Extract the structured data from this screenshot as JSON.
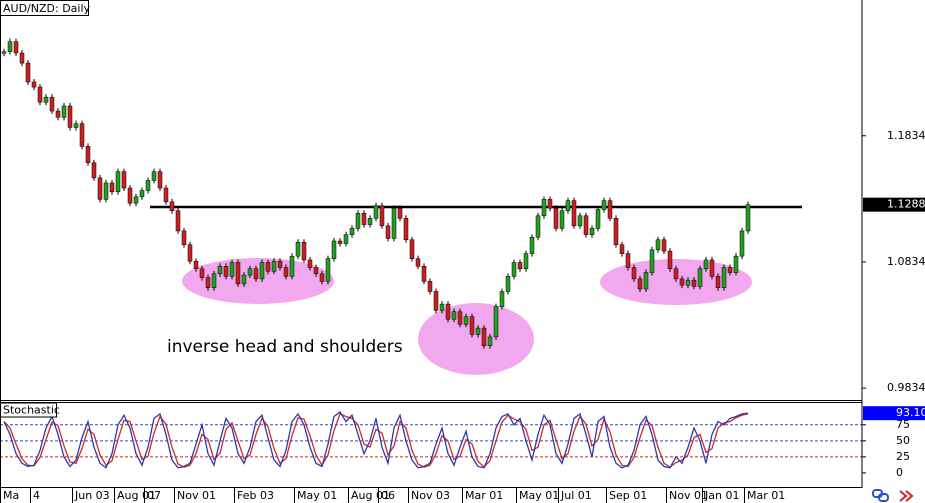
{
  "chart_data": [
    {
      "type": "candlestick",
      "title": "AUD/NZD: Daily",
      "annotation": "inverse head and shoulders",
      "up_color": "#22a022",
      "down_color": "#cc2020",
      "neckline": 1.127,
      "ylim": [
        0.974,
        1.291
      ],
      "yticks": [
        1.1834,
        1.0834,
        0.9834
      ],
      "categories": [
        "Ma",
        null,
        null,
        null,
        null,
        "4",
        null,
        null,
        null,
        null,
        null,
        null,
        "Jun 03",
        null,
        null,
        null,
        null,
        null,
        null,
        "Aug 01",
        null,
        null,
        null,
        null,
        "07",
        null,
        null,
        null,
        null,
        "Nov 01",
        null,
        null,
        null,
        null,
        null,
        null,
        null,
        null,
        null,
        "Feb 03",
        null,
        null,
        null,
        null,
        null,
        null,
        null,
        null,
        null,
        "May 01",
        null,
        null,
        null,
        null,
        null,
        null,
        null,
        null,
        "Aug 01",
        null,
        null,
        null,
        null,
        "06",
        null,
        null,
        null,
        null,
        "Nov 03",
        null,
        null,
        null,
        null,
        null,
        null,
        null,
        null,
        "Mar 01",
        null,
        null,
        null,
        null,
        null,
        null,
        null,
        null,
        "May 01",
        null,
        null,
        null,
        null,
        null,
        null,
        "Jul 01",
        null,
        null,
        null,
        null,
        null,
        null,
        null,
        "Sep 01",
        null,
        null,
        null,
        null,
        null,
        null,
        null,
        null,
        null,
        "Nov 01",
        null,
        null,
        null,
        null,
        null,
        "Jan 01",
        null,
        null,
        null,
        null,
        null,
        null,
        "Mar 01"
      ],
      "values": [
        1.25,
        1.258,
        1.249,
        1.241,
        1.226,
        1.222,
        1.21,
        1.214,
        1.203,
        1.198,
        1.207,
        1.19,
        1.193,
        1.175,
        1.162,
        1.15,
        1.133,
        1.146,
        1.139,
        1.155,
        1.142,
        1.13,
        1.135,
        1.14,
        1.148,
        1.155,
        1.142,
        1.131,
        1.124,
        1.108,
        1.097,
        1.084,
        1.078,
        1.071,
        1.063,
        1.074,
        1.08,
        1.072,
        1.083,
        1.066,
        1.073,
        1.078,
        1.07,
        1.083,
        1.076,
        1.084,
        1.079,
        1.072,
        1.088,
        1.099,
        1.085,
        1.079,
        1.074,
        1.068,
        1.086,
        1.1,
        1.098,
        1.105,
        1.11,
        1.122,
        1.113,
        1.118,
        1.128,
        1.112,
        1.102,
        1.126,
        1.118,
        1.101,
        1.086,
        1.08,
        1.068,
        1.06,
        1.045,
        1.05,
        1.038,
        1.044,
        1.034,
        1.04,
        1.026,
        1.031,
        1.017,
        1.024,
        1.048,
        1.06,
        1.072,
        1.083,
        1.078,
        1.09,
        1.103,
        1.12,
        1.133,
        1.126,
        1.11,
        1.124,
        1.132,
        1.112,
        1.12,
        1.105,
        1.11,
        1.125,
        1.132,
        1.118,
        1.097,
        1.09,
        1.079,
        1.07,
        1.062,
        1.075,
        1.093,
        1.101,
        1.092,
        1.078,
        1.07,
        1.065,
        1.069,
        1.064,
        1.078,
        1.085,
        1.072,
        1.063,
        1.079,
        1.075,
        1.088,
        1.108,
        1.1288
      ],
      "value_labels": [
        null,
        null,
        null,
        null,
        null,
        null,
        null,
        null,
        null,
        null,
        null,
        null,
        null,
        null,
        null,
        null,
        null,
        null,
        null,
        null,
        null,
        null,
        null,
        null,
        null,
        null,
        null,
        null,
        null,
        null,
        null,
        null,
        null,
        null,
        null,
        null,
        null,
        null,
        null,
        null,
        null,
        null,
        null,
        null,
        null,
        null,
        null,
        null,
        null,
        null,
        null,
        null,
        null,
        null,
        null,
        null,
        null,
        null,
        null,
        null,
        null,
        null,
        null,
        null,
        null,
        null,
        null,
        null,
        null,
        null,
        null,
        null,
        null,
        null,
        null,
        null,
        null,
        null,
        null,
        null,
        null,
        null,
        null,
        null,
        null,
        null,
        null,
        null,
        null,
        null,
        null,
        null,
        null,
        null,
        null,
        null,
        null,
        null,
        null,
        null,
        null,
        null,
        null,
        null,
        null,
        null,
        null,
        null,
        null,
        null,
        null,
        null,
        null,
        null,
        null,
        null,
        null,
        null,
        null,
        null,
        null,
        null,
        null,
        null,
        "1.1288"
      ]
    },
    {
      "type": "line",
      "title": "Stochastic",
      "ylim": [
        -22,
        109
      ],
      "yticks": [
        75,
        50,
        25,
        0
      ],
      "levels": [
        75,
        50,
        25
      ],
      "level_colors": [
        "#3344cc",
        "#3344cc",
        "#cc2222"
      ],
      "series": [
        {
          "color": "#2b3aa8",
          "values": [
            80,
            60,
            30,
            15,
            10,
            12,
            35,
            70,
            88,
            60,
            25,
            10,
            20,
            55,
            80,
            40,
            15,
            8,
            30,
            75,
            90,
            70,
            30,
            12,
            40,
            85,
            92,
            60,
            20,
            8,
            10,
            15,
            45,
            75,
            30,
            12,
            50,
            85,
            70,
            30,
            15,
            40,
            80,
            90,
            55,
            20,
            10,
            35,
            80,
            92,
            75,
            40,
            15,
            10,
            45,
            88,
            95,
            80,
            90,
            60,
            30,
            50,
            85,
            40,
            15,
            70,
            90,
            50,
            20,
            8,
            10,
            15,
            45,
            70,
            30,
            12,
            40,
            65,
            25,
            10,
            8,
            30,
            70,
            88,
            92,
            75,
            85,
            50,
            20,
            60,
            90,
            75,
            30,
            15,
            45,
            85,
            92,
            60,
            25,
            80,
            88,
            40,
            15,
            8,
            12,
            35,
            75,
            88,
            60,
            20,
            10,
            8,
            25,
            15,
            40,
            70,
            50,
            15,
            60,
            80,
            75,
            85,
            88,
            92,
            93.1
          ],
          "value_labels": [
            null,
            null,
            null,
            null,
            null,
            null,
            null,
            null,
            null,
            null,
            null,
            null,
            null,
            null,
            null,
            null,
            null,
            null,
            null,
            null,
            null,
            null,
            null,
            null,
            null,
            null,
            null,
            null,
            null,
            null,
            null,
            null,
            null,
            null,
            null,
            null,
            null,
            null,
            null,
            null,
            null,
            null,
            null,
            null,
            null,
            null,
            null,
            null,
            null,
            null,
            null,
            null,
            null,
            null,
            null,
            null,
            null,
            null,
            null,
            null,
            null,
            null,
            null,
            null,
            null,
            null,
            null,
            null,
            null,
            null,
            null,
            null,
            null,
            null,
            null,
            null,
            null,
            null,
            null,
            null,
            null,
            null,
            null,
            null,
            null,
            null,
            null,
            null,
            null,
            null,
            null,
            null,
            null,
            null,
            null,
            null,
            null,
            null,
            null,
            null,
            null,
            null,
            null,
            null,
            null,
            null,
            null,
            null,
            null,
            null,
            null,
            null,
            null,
            null,
            null,
            null,
            null,
            null,
            null,
            null,
            null,
            null,
            null,
            null,
            "93.10"
          ]
        },
        {
          "color": "#cc2a2a",
          "values": [
            80,
            70,
            45,
            22,
            12,
            11,
            24,
            52,
            79,
            74,
            42,
            17,
            15,
            38,
            68,
            60,
            28,
            12,
            19,
            52,
            82,
            80,
            50,
            21,
            26,
            62,
            88,
            76,
            40,
            14,
            9,
            12,
            30,
            60,
            52,
            21,
            31,
            68,
            78,
            50,
            22,
            28,
            60,
            85,
            72,
            38,
            15,
            22,
            58,
            86,
            84,
            58,
            28,
            12,
            28,
            66,
            92,
            88,
            85,
            75,
            45,
            40,
            68,
            62,
            28,
            42,
            80,
            70,
            35,
            14,
            9,
            12,
            30,
            58,
            50,
            21,
            26,
            52,
            45,
            18,
            9,
            19,
            50,
            79,
            90,
            84,
            80,
            68,
            35,
            40,
            75,
            82,
            52,
            22,
            30,
            65,
            88,
            76,
            42,
            52,
            84,
            64,
            28,
            12,
            10,
            24,
            55,
            82,
            74,
            40,
            15,
            9,
            16,
            20,
            28,
            55,
            60,
            32,
            38,
            70,
            78,
            80,
            86,
            90,
            92
          ]
        }
      ]
    }
  ]
}
